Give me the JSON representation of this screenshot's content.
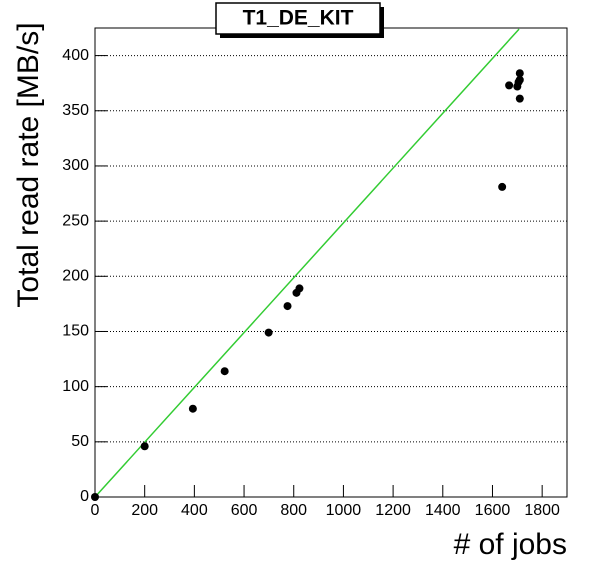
{
  "chart_data": {
    "type": "scatter",
    "title": "T1_DE_KIT",
    "x_label": "# of jobs",
    "y_label": "Total read rate [MB/s]",
    "x": [
      0,
      200,
      394,
      522,
      699,
      775,
      811,
      823,
      1639,
      1667,
      1700,
      1705,
      1710,
      1710,
      1710
    ],
    "values": [
      0,
      46,
      80,
      114,
      149,
      173,
      185,
      189,
      281,
      373,
      372,
      376,
      384,
      378,
      361
    ],
    "color": "#000000",
    "fit_line": {
      "color": "#33cc33",
      "x": [
        0,
        1707
      ],
      "values": [
        0,
        424
      ]
    },
    "xlim": [
      0,
      1900
    ],
    "ylim": [
      0,
      425
    ],
    "xticks": [
      0,
      200,
      400,
      600,
      800,
      1000,
      1200,
      1400,
      1600,
      1800
    ],
    "yticks": [
      0,
      50,
      100,
      150,
      200,
      250,
      300,
      350,
      400
    ],
    "grid": true
  }
}
